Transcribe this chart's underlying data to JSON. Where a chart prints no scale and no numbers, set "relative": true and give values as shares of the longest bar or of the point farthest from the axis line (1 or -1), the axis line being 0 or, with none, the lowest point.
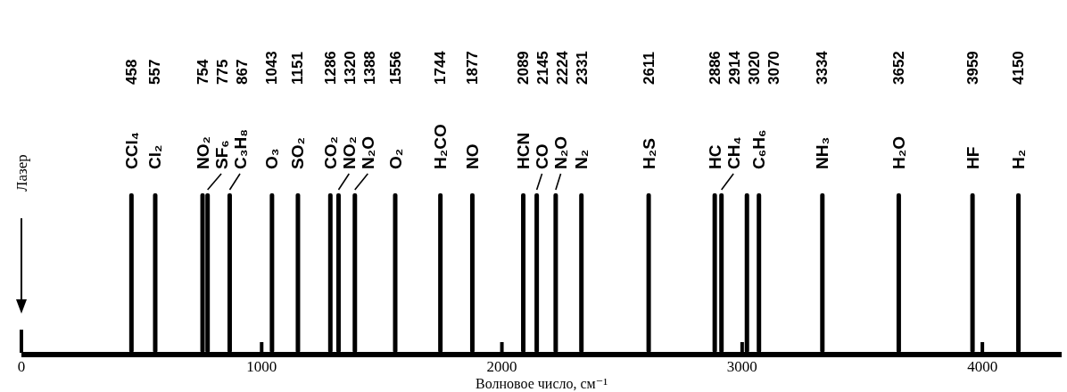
{
  "chart_data": {
    "type": "bar",
    "relative": true,
    "color": "#000000",
    "x": [
      458,
      557,
      754,
      775,
      867,
      1043,
      1151,
      1286,
      1320,
      1388,
      1556,
      1744,
      1877,
      2089,
      2145,
      2224,
      2331,
      2611,
      2886,
      2914,
      3020,
      3070,
      3334,
      3652,
      3959,
      4150
    ],
    "values": [
      1,
      1,
      1,
      1,
      1,
      1,
      1,
      1,
      1,
      1,
      1,
      1,
      1,
      1,
      1,
      1,
      1,
      1,
      1,
      1,
      1,
      1,
      1,
      1,
      1,
      1
    ],
    "xlim": [
      0,
      4330
    ],
    "xticks": [
      0,
      1000,
      2000,
      3000,
      4000
    ],
    "xlabel": "Волновое число, см⁻¹",
    "annotations": [
      "458",
      "557",
      "754",
      "775",
      "867",
      "1043",
      "1151",
      "1286",
      "1320",
      "1388",
      "1556",
      "1744",
      "1877",
      "2089",
      "2145",
      "2224",
      "2331",
      "2611",
      "2886",
      "2914",
      "3020",
      "3070",
      "3334",
      "3652",
      "3959",
      "4150",
      {
        "text": "CCl₄",
        "x": 458,
        "y": 1
      },
      {
        "text": "Cl₂",
        "x": 557,
        "y": 1
      },
      {
        "text": "NO₂",
        "x": 754,
        "y": 1
      },
      {
        "text": "SF₆",
        "x": 775,
        "y": 1
      },
      {
        "text": "C₃H₈",
        "x": 867,
        "y": 1
      },
      {
        "text": "O₃",
        "x": 1043,
        "y": 1
      },
      {
        "text": "SO₂",
        "x": 1151,
        "y": 1
      },
      {
        "text": "CO₂",
        "x": 1286,
        "y": 1
      },
      {
        "text": "NO₂",
        "x": 1320,
        "y": 1
      },
      {
        "text": "N₂O",
        "x": 1388,
        "y": 1
      },
      {
        "text": "O₂",
        "x": 1556,
        "y": 1
      },
      {
        "text": "H₂CO",
        "x": 1744,
        "y": 1
      },
      {
        "text": "NO",
        "x": 1877,
        "y": 1
      },
      {
        "text": "HCN",
        "x": 2089,
        "y": 1
      },
      {
        "text": "CO",
        "x": 2145,
        "y": 1
      },
      {
        "text": "N₂O",
        "x": 2224,
        "y": 1
      },
      {
        "text": "N₂",
        "x": 2331,
        "y": 1
      },
      {
        "text": "H₂S",
        "x": 2611,
        "y": 1
      },
      {
        "text": "HC",
        "x": 2886,
        "y": 1
      },
      {
        "text": "CH₄",
        "x": 2914,
        "y": 1
      },
      {
        "text": "C₆H₆",
        "x": 3070,
        "y": 1
      },
      {
        "text": "NH₃",
        "x": 3334,
        "y": 1
      },
      {
        "text": "H₂O",
        "x": 3652,
        "y": 1
      },
      {
        "text": "HF",
        "x": 3959,
        "y": 1
      },
      {
        "text": "H₂",
        "x": 4150,
        "y": 1
      }
    ],
    "ref_lines": [
      {
        "axis": "x",
        "value": 0,
        "label": "Лазер"
      }
    ]
  }
}
